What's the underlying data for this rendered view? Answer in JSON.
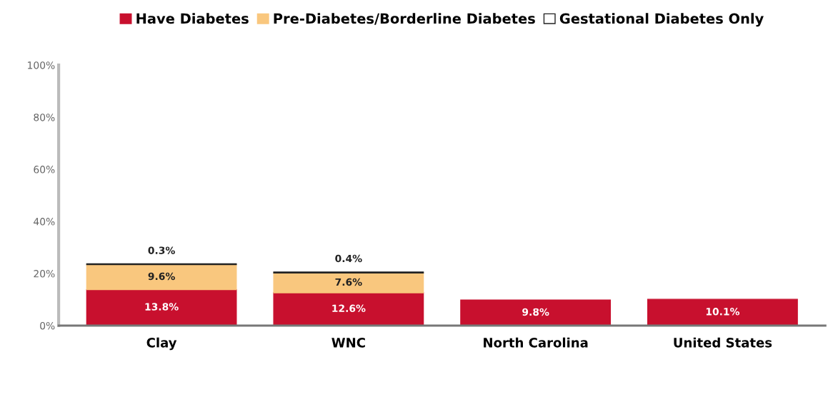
{
  "chart_data": {
    "type": "bar",
    "stacked": true,
    "legend": "top",
    "grid": false,
    "categories": [
      "Clay",
      "WNC",
      "North Carolina",
      "United States"
    ],
    "series": [
      {
        "name": "Have Diabetes",
        "color": "#c8102e",
        "values": [
          13.8,
          12.6,
          9.8,
          10.1
        ],
        "value_labels": [
          "13.8%",
          "12.6%",
          "9.8%",
          "10.1%"
        ]
      },
      {
        "name": "Pre-Diabetes/Borderline Diabetes",
        "color": "#f9c77e",
        "values": [
          9.6,
          7.6,
          null,
          null
        ],
        "value_labels": [
          "9.6%",
          "7.6%",
          null,
          null
        ]
      },
      {
        "name": "Gestational Diabetes Only",
        "color": "#ffffff",
        "values": [
          0.3,
          0.4,
          null,
          null
        ],
        "value_labels": [
          "0.3%",
          "0.4%",
          null,
          null
        ]
      }
    ],
    "ylim": [
      0,
      100
    ],
    "yticks": [
      {
        "value": 0,
        "label": "0%"
      },
      {
        "value": 20,
        "label": "20%"
      },
      {
        "value": 40,
        "label": "40%"
      },
      {
        "value": 60,
        "label": "60%"
      },
      {
        "value": 80,
        "label": "80%"
      },
      {
        "value": 100,
        "label": "100%"
      }
    ]
  }
}
